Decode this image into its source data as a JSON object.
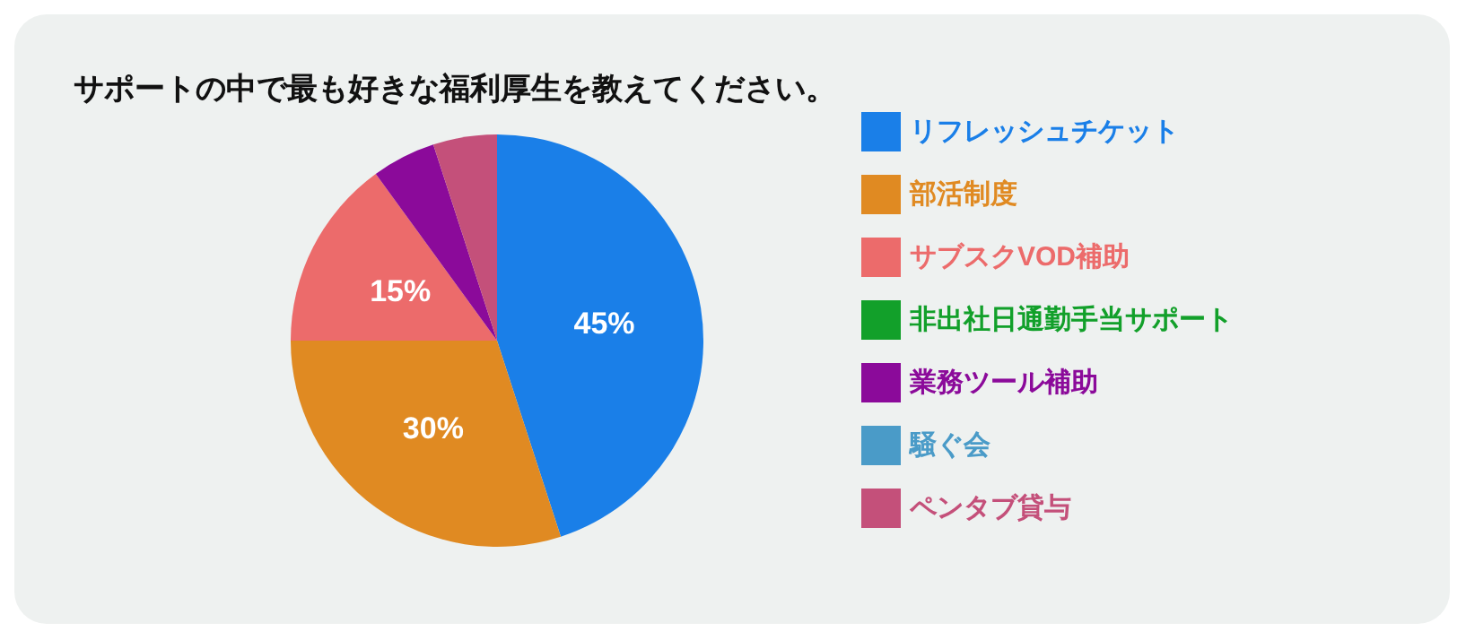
{
  "chart_data": {
    "type": "pie",
    "title": "サポートの中で最も好きな福利厚生を教えてください。",
    "categories": [
      "リフレッシュチケット",
      "部活制度",
      "サブスクVOD補助",
      "非出社日通勤手当サポート",
      "業務ツール補助",
      "騒ぐ会",
      "ペンタブ貸与"
    ],
    "values": [
      45,
      30,
      15,
      0,
      5,
      0,
      5
    ],
    "colors": [
      "#1a7fe8",
      "#e08a22",
      "#ec6b6b",
      "#12a02a",
      "#8b0a9a",
      "#4a9bc8",
      "#c4507a"
    ],
    "value_labels": [
      "45%",
      "30%",
      "15%",
      null,
      null,
      null,
      null
    ],
    "legend": "right"
  }
}
